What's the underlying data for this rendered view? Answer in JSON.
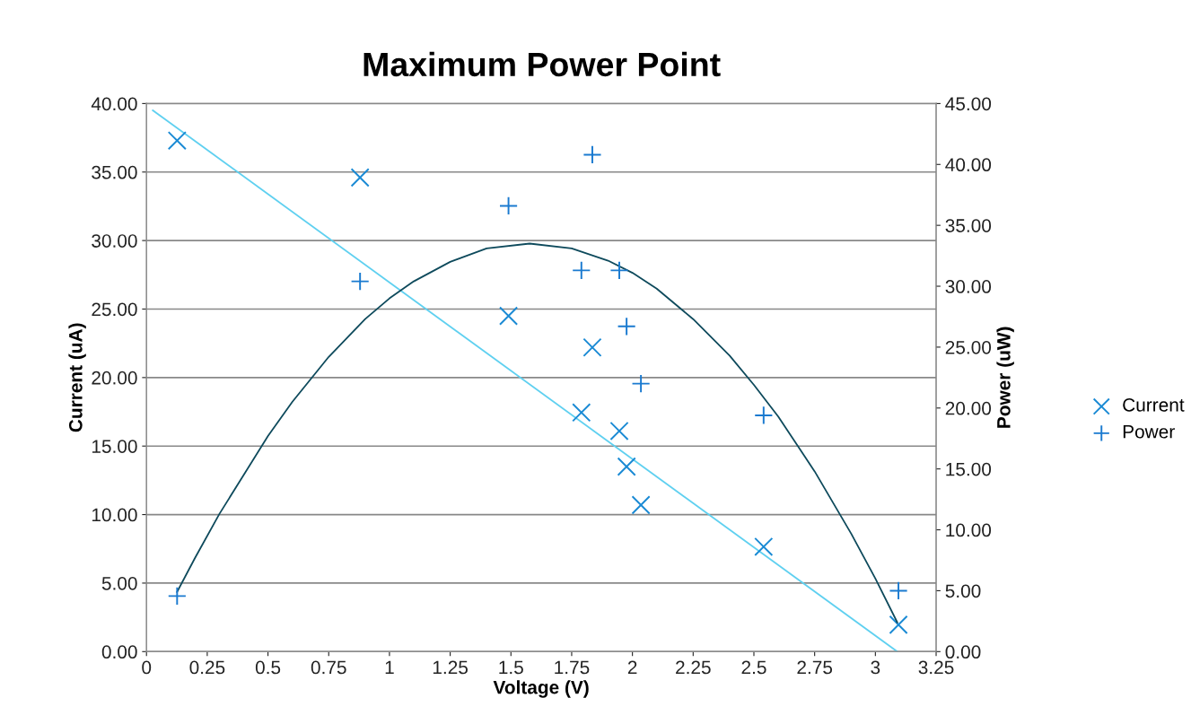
{
  "chart_data": {
    "type": "scatter",
    "title": "Maximum Power Point",
    "xlabel": "Voltage (V)",
    "ylabel": "Current (uA)",
    "y2label": "Power (uW)",
    "xlim": [
      0,
      3.25
    ],
    "xticks": [
      0,
      {
        "value": 0.25,
        "label": "0.25"
      },
      {
        "value": 0.5,
        "label": "0.5"
      },
      {
        "value": 0.75,
        "label": "0.75"
      },
      1,
      {
        "value": 1.25,
        "label": "1.25"
      },
      {
        "value": 1.5,
        "label": "1.5"
      },
      {
        "value": 1.75,
        "label": "1.75"
      },
      2,
      {
        "value": 2.25,
        "label": "2.25"
      },
      {
        "value": 2.5,
        "label": "2.5"
      },
      {
        "value": 2.75,
        "label": "2.75"
      },
      3,
      {
        "value": 3.25,
        "label": "3.25"
      }
    ],
    "ylim": [
      0,
      40
    ],
    "yticks": [
      {
        "value": 0,
        "label": "0.00"
      },
      {
        "value": 5,
        "label": "5.00"
      },
      {
        "value": 10,
        "label": "10.00"
      },
      {
        "value": 15,
        "label": "15.00"
      },
      {
        "value": 20,
        "label": "20.00"
      },
      {
        "value": 25,
        "label": "25.00"
      },
      {
        "value": 30,
        "label": "30.00"
      },
      {
        "value": 35,
        "label": "35.00"
      },
      {
        "value": 40,
        "label": "40.00"
      }
    ],
    "y2lim": [
      0,
      45
    ],
    "y2ticks": [
      {
        "value": 0,
        "label": "0.00"
      },
      {
        "value": 5,
        "label": "5.00"
      },
      {
        "value": 10,
        "label": "10.00"
      },
      {
        "value": 15,
        "label": "15.00"
      },
      {
        "value": 20,
        "label": "20.00"
      },
      {
        "value": 25,
        "label": "25.00"
      },
      {
        "value": 30,
        "label": "30.00"
      },
      {
        "value": 35,
        "label": "35.00"
      },
      {
        "value": 40,
        "label": "40.00"
      },
      {
        "value": 45,
        "label": "45.00"
      }
    ],
    "grid": "y",
    "legend": "right",
    "series": [
      {
        "name": "Current",
        "marker": "cross",
        "color": "#1a8ad4",
        "x": [
          0.126,
          0.879,
          1.49,
          1.79,
          1.835,
          1.946,
          1.976,
          2.035,
          2.54,
          3.095
        ],
        "values": [
          37.3,
          34.6,
          24.5,
          17.45,
          22.2,
          16.1,
          13.5,
          10.7,
          7.65,
          1.96
        ]
      },
      {
        "name": "Power",
        "marker": "plus",
        "axis": "y2",
        "color": "#1a7ad0",
        "x": [
          0.126,
          0.879,
          1.49,
          1.79,
          1.835,
          1.946,
          1.976,
          2.035,
          2.54,
          3.095
        ],
        "values": [
          4.56,
          30.4,
          36.6,
          31.3,
          40.8,
          31.3,
          26.7,
          22.0,
          19.4,
          5.0
        ]
      },
      {
        "type": "line",
        "color": "#5fd0f0",
        "x": [
          0.026,
          3.09
        ],
        "values": [
          39.5,
          0
        ]
      },
      {
        "type": "line",
        "axis": "y2",
        "color": "#0e4a5c",
        "x": [
          0.126,
          0.2,
          0.3,
          0.5,
          0.6,
          0.75,
          0.9,
          1.0,
          1.1,
          1.25,
          1.4,
          1.577,
          1.75,
          1.9,
          2.0,
          2.1,
          2.25,
          2.4,
          2.5,
          2.6,
          2.75,
          2.9,
          3.0,
          3.09
        ],
        "values": [
          4.9,
          7.7,
          11.3,
          17.7,
          20.5,
          24.2,
          27.3,
          29.0,
          30.4,
          32.0,
          33.1,
          33.5,
          33.1,
          32.1,
          31.1,
          29.8,
          27.3,
          24.3,
          21.9,
          19.3,
          14.8,
          9.7,
          6.0,
          2.4
        ]
      }
    ]
  }
}
